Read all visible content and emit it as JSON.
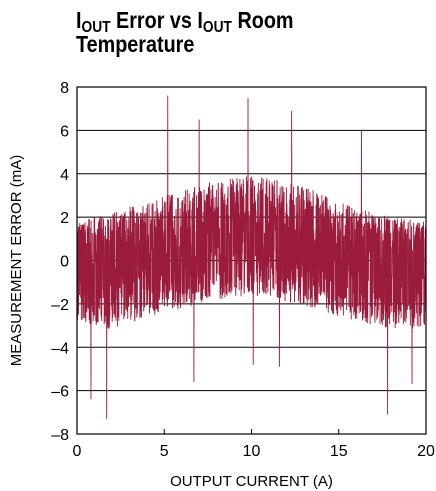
{
  "chart_data": {
    "type": "line",
    "title": {
      "line1_prefix": "I",
      "line1_sub1": "OUT",
      "line1_middle": " Error vs I",
      "line1_sub2": "OUT",
      "line1_suffix": " Room",
      "line2": "Temperature"
    },
    "xlabel": "OUTPUT CURRENT (A)",
    "ylabel": "MEASUREMENT ERROR (mA)",
    "xlim": [
      0,
      20
    ],
    "ylim": [
      -8,
      8
    ],
    "x_ticks": [
      0,
      5,
      10,
      15,
      20
    ],
    "y_ticks": [
      -8,
      -6,
      -4,
      -2,
      0,
      2,
      4,
      6,
      8
    ],
    "x_tick_labels": [
      "0",
      "5",
      "10",
      "15",
      "20"
    ],
    "y_tick_labels": [
      "–8",
      "–6",
      "–4",
      "–2",
      "0",
      "2",
      "4",
      "6",
      "8"
    ],
    "grid": true,
    "series_color": "#9b1b3c",
    "series": [
      {
        "x": [
          0,
          1,
          2,
          3,
          4,
          5,
          6,
          7,
          8,
          9,
          10,
          11,
          12,
          13,
          14,
          15,
          16,
          17,
          18,
          19,
          20
        ],
        "y_center": [
          -0.3,
          -0.4,
          -0.3,
          -0.1,
          0.1,
          0.3,
          0.5,
          0.7,
          0.8,
          0.9,
          1.0,
          0.9,
          0.8,
          0.6,
          0.4,
          0.2,
          0.0,
          -0.2,
          -0.3,
          -0.4,
          -0.4
        ],
        "y_upper": [
          1.8,
          2.0,
          2.2,
          2.5,
          2.8,
          3.0,
          3.2,
          3.5,
          3.7,
          3.8,
          3.9,
          3.8,
          3.6,
          3.4,
          3.1,
          2.8,
          2.5,
          2.2,
          2.0,
          1.9,
          1.8
        ],
        "y_lower": [
          -2.8,
          -3.0,
          -3.2,
          -2.9,
          -2.6,
          -2.4,
          -2.2,
          -2.0,
          -1.8,
          -1.7,
          -1.6,
          -1.7,
          -1.9,
          -2.1,
          -2.4,
          -2.6,
          -2.8,
          -3.0,
          -3.2,
          -3.2,
          -3.0
        ]
      }
    ],
    "annotations": [
      {
        "x": 5.2,
        "y": 7.6
      },
      {
        "x": 7.0,
        "y": 6.5
      },
      {
        "x": 9.8,
        "y": 7.5
      },
      {
        "x": 12.3,
        "y": 6.9
      },
      {
        "x": 16.3,
        "y": 6.0
      },
      {
        "x": 0.8,
        "y": -6.4
      },
      {
        "x": 1.7,
        "y": -7.3
      },
      {
        "x": 6.7,
        "y": -5.6
      },
      {
        "x": 10.1,
        "y": -4.8
      },
      {
        "x": 11.6,
        "y": -4.9
      },
      {
        "x": 17.8,
        "y": -7.1
      },
      {
        "x": 19.2,
        "y": -5.7
      }
    ]
  }
}
